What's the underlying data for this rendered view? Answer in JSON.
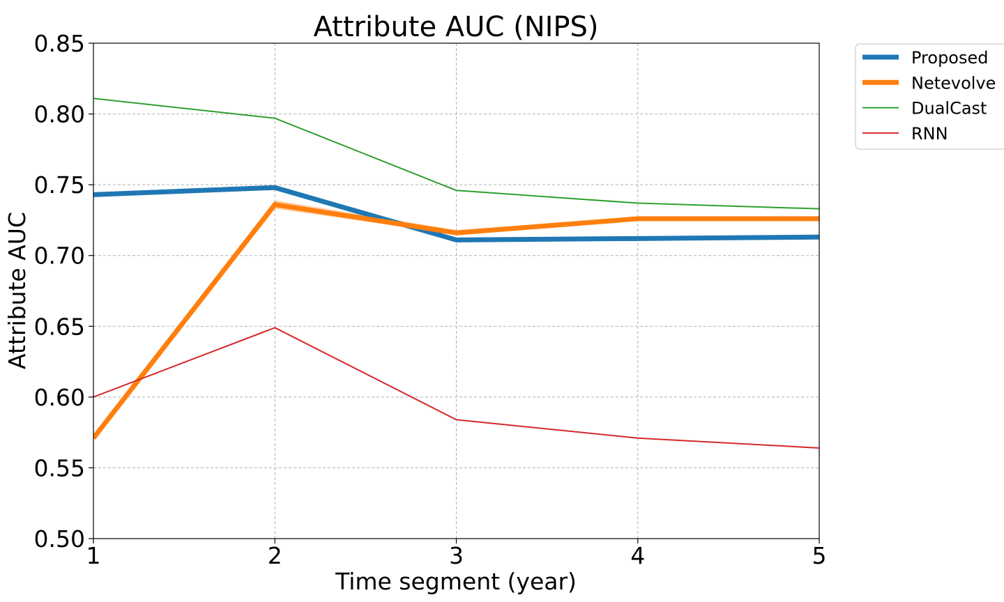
{
  "chart_data": {
    "type": "line",
    "title": "Attribute AUC (NIPS)",
    "xlabel": "Time segment (year)",
    "ylabel": "Attribute AUC",
    "xlim": [
      1,
      5
    ],
    "ylim": [
      0.5,
      0.85
    ],
    "x": [
      1,
      2,
      3,
      4,
      5
    ],
    "xticks": [
      "1",
      "2",
      "3",
      "4",
      "5"
    ],
    "yticks": [
      "0.50",
      "0.55",
      "0.60",
      "0.65",
      "0.70",
      "0.75",
      "0.80",
      "0.85"
    ],
    "grid": true,
    "legend_position": "outside-top-right",
    "series": [
      {
        "name": "Proposed",
        "color": "#1f77b4",
        "weight": "thick",
        "values": [
          0.743,
          0.748,
          0.711,
          0.712,
          0.713
        ]
      },
      {
        "name": "Netevolve",
        "color": "#ff7f0e",
        "weight": "thick",
        "values": [
          0.571,
          0.736,
          0.716,
          0.726,
          0.726
        ],
        "band_low": [
          0.57,
          0.733,
          0.715,
          0.725,
          0.725
        ],
        "band_high": [
          0.573,
          0.739,
          0.718,
          0.727,
          0.727
        ]
      },
      {
        "name": "DualCast",
        "color": "#2ca02c",
        "weight": "thin",
        "values": [
          0.811,
          0.797,
          0.746,
          0.737,
          0.733
        ]
      },
      {
        "name": "RNN",
        "color": "#d62728",
        "weight": "thin",
        "values": [
          0.6,
          0.649,
          0.584,
          0.571,
          0.564
        ]
      }
    ]
  }
}
